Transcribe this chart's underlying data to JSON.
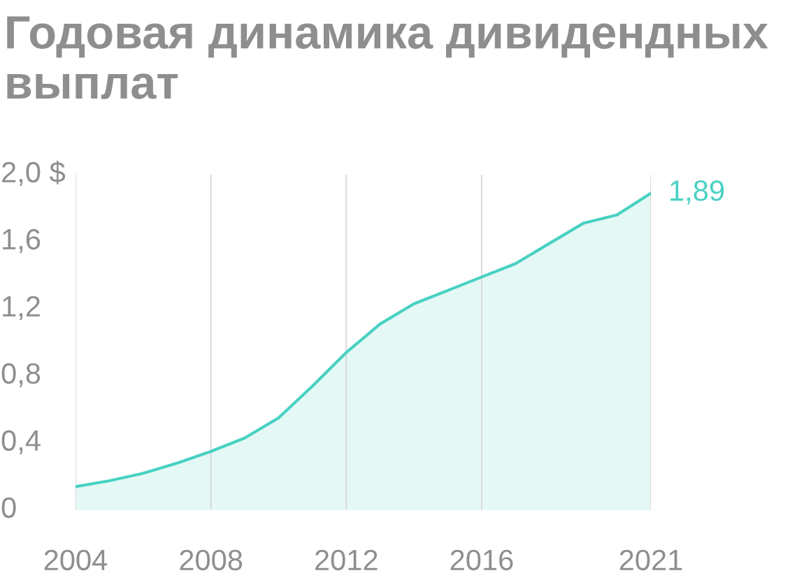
{
  "chart_data": {
    "type": "area",
    "title": "Годовая динамика дивидендных выплат",
    "x": [
      2004,
      2005,
      2006,
      2007,
      2008,
      2009,
      2010,
      2011,
      2012,
      2013,
      2014,
      2015,
      2016,
      2017,
      2018,
      2019,
      2020,
      2021
    ],
    "series": [
      {
        "color": "#48d1c2",
        "values": [
          0.14,
          0.175,
          0.22,
          0.28,
          0.35,
          0.43,
          0.55,
          0.74,
          0.94,
          1.11,
          1.23,
          1.31,
          1.39,
          1.47,
          1.59,
          1.71,
          1.76,
          1.89
        ]
      }
    ],
    "xlim": [
      2004,
      2021
    ],
    "xticks": [
      2004,
      2008,
      2012,
      2016,
      2021
    ],
    "ylim": [
      0,
      2.0
    ],
    "yticks": [
      0,
      {
        "value": 0.4,
        "label": "0,4"
      },
      {
        "value": 0.8,
        "label": "0,8"
      },
      {
        "value": 1.2,
        "label": "1,2"
      },
      {
        "value": 1.6,
        "label": "1,6"
      },
      {
        "value": 2.0,
        "label": "2,0 $"
      }
    ],
    "grid": "x",
    "marker": "none",
    "line_style": "solid",
    "annotations": [
      {
        "text": "1,89",
        "x": 2021,
        "y": 1.89
      }
    ]
  }
}
